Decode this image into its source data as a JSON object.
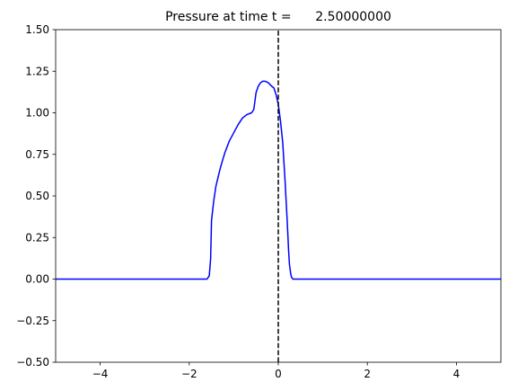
{
  "chart_data": {
    "type": "line",
    "title": "Pressure at time t =      2.50000000",
    "xlabel": "",
    "ylabel": "",
    "xlim": [
      -5,
      5
    ],
    "ylim": [
      -0.5,
      1.5
    ],
    "grid": false,
    "x_ticks": [
      -4,
      -2,
      0,
      2,
      4
    ],
    "x_tick_labels": [
      "−4",
      "−2",
      "0",
      "2",
      "4"
    ],
    "y_ticks": [
      -0.5,
      -0.25,
      0.0,
      0.25,
      0.5,
      0.75,
      1.0,
      1.25,
      1.5
    ],
    "y_tick_labels": [
      "−0.50",
      "−0.25",
      "0.00",
      "0.25",
      "0.50",
      "0.75",
      "1.00",
      "1.25",
      "1.50"
    ],
    "series": [
      {
        "color": "#0000ff",
        "style": "solid",
        "x": [
          -5.0,
          -1.6,
          -1.55,
          -1.52,
          -1.5,
          -1.45,
          -1.4,
          -1.3,
          -1.2,
          -1.1,
          -1.0,
          -0.9,
          -0.8,
          -0.7,
          -0.6,
          -0.55,
          -0.5,
          -0.45,
          -0.4,
          -0.35,
          -0.3,
          -0.25,
          -0.2,
          -0.15,
          -0.1,
          -0.05,
          0.0,
          0.05,
          0.1,
          0.15,
          0.2,
          0.23,
          0.25,
          0.28,
          0.3,
          0.33,
          0.36,
          0.4,
          5.0
        ],
        "y": [
          0.0,
          0.0,
          0.02,
          0.12,
          0.35,
          0.47,
          0.56,
          0.67,
          0.76,
          0.83,
          0.88,
          0.93,
          0.97,
          0.99,
          1.0,
          1.02,
          1.12,
          1.16,
          1.18,
          1.19,
          1.19,
          1.185,
          1.175,
          1.16,
          1.15,
          1.11,
          1.05,
          0.95,
          0.82,
          0.6,
          0.35,
          0.18,
          0.09,
          0.03,
          0.01,
          0.0,
          0.0,
          0.0,
          0.0
        ]
      },
      {
        "color": "#000000",
        "style": "dashed",
        "x": [
          0,
          0
        ],
        "y": [
          -0.5,
          1.5
        ]
      }
    ]
  }
}
